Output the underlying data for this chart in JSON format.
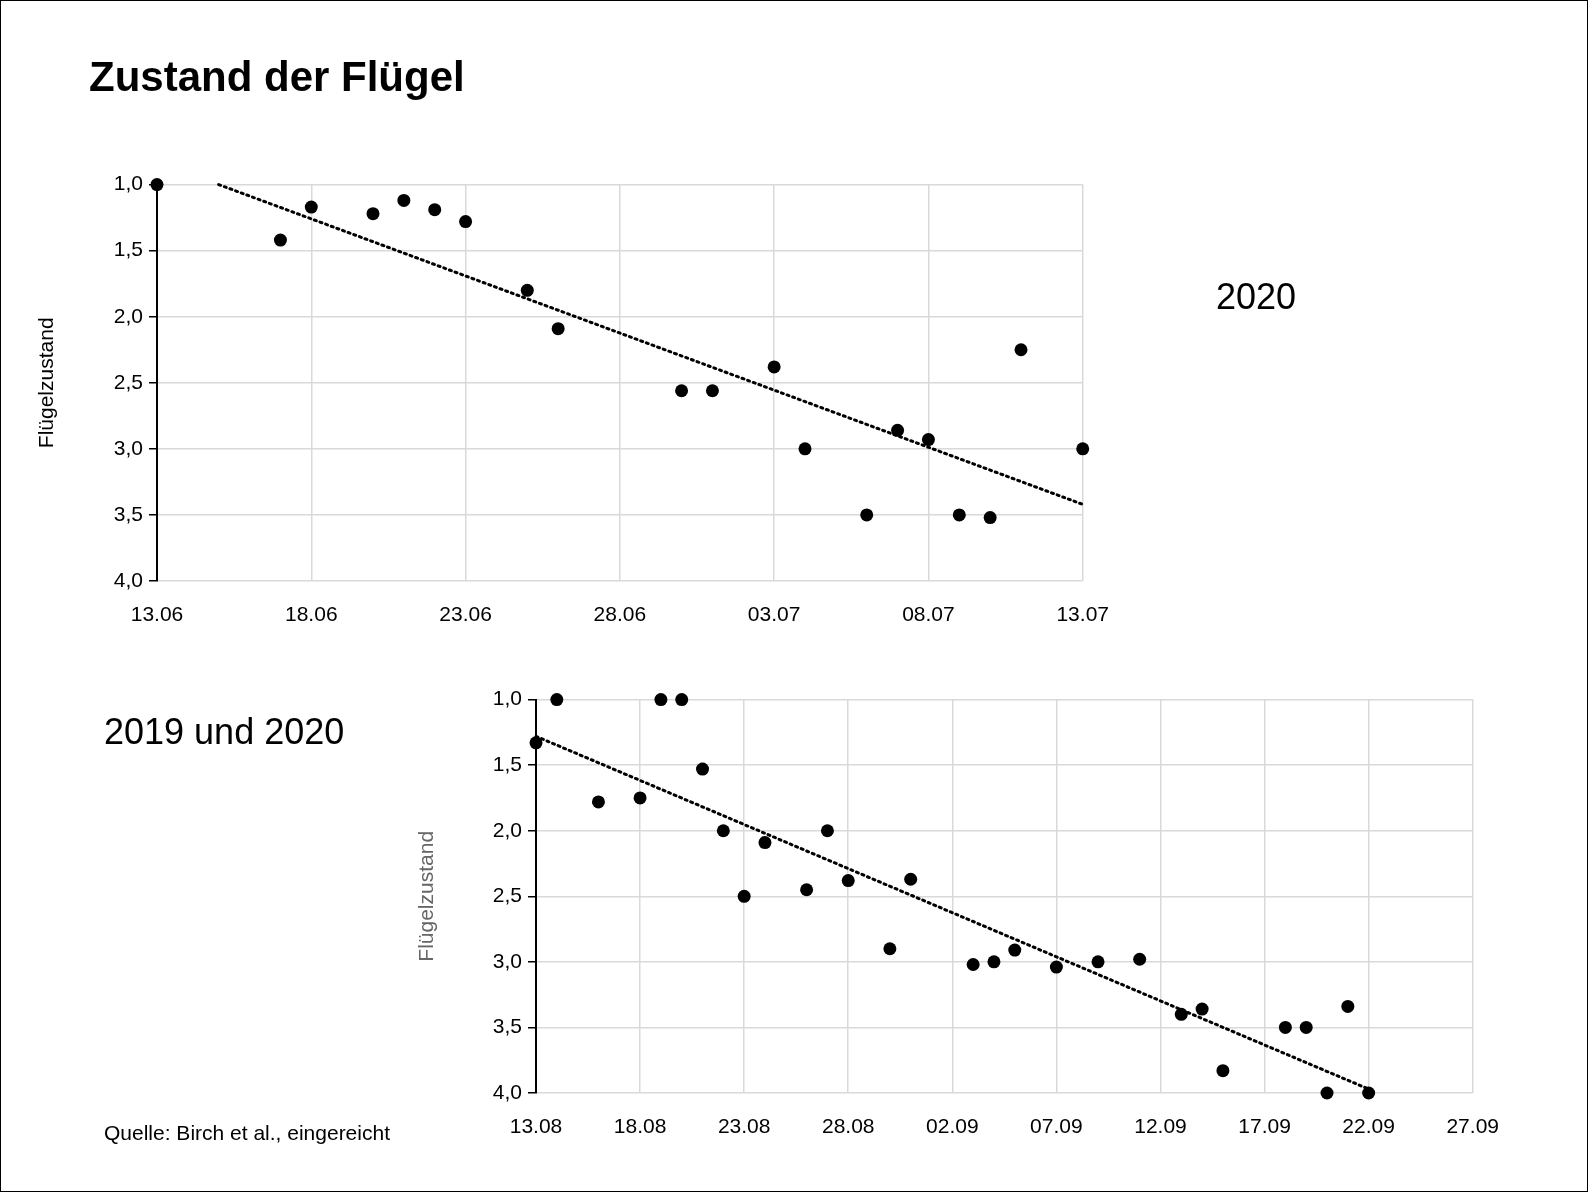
{
  "chart_data": [
    {
      "type": "scatter",
      "title": "Zustand der Flügel",
      "ylabel": "Flügelzustand",
      "annotations": [
        "2020"
      ],
      "series": [
        {
          "type": "scatter",
          "color": "#000000",
          "marker": "circle",
          "x": [
            "--06-13",
            "--06-17",
            "--06-18",
            "--06-20",
            "--06-21",
            "--06-22",
            "--06-23",
            "--06-25",
            "--06-26",
            "--06-30",
            "--07-01",
            "--07-03",
            "--07-04",
            "--07-06",
            "--07-07",
            "--07-08",
            "--07-09",
            "--07-10",
            "--07-11",
            "--07-13"
          ],
          "values": [
            1.0,
            1.42,
            1.17,
            1.22,
            1.12,
            1.19,
            1.28,
            1.8,
            2.09,
            2.56,
            2.56,
            2.38,
            3.0,
            3.5,
            2.86,
            2.93,
            3.5,
            3.52,
            2.25,
            3.0
          ]
        },
        {
          "type": "line",
          "color": "#000000",
          "marker": "none",
          "line_style": "dotted",
          "x": [
            "--06-15",
            "--07-13"
          ],
          "values": [
            1.0,
            3.42
          ]
        }
      ],
      "xlim": [
        "--06-13",
        "--07-13"
      ],
      "xticks": [
        {
          "value": "--06-13",
          "label": "13.06"
        },
        {
          "value": "--06-18",
          "label": "18.06"
        },
        {
          "value": "--06-23",
          "label": "23.06"
        },
        {
          "value": "--06-28",
          "label": "28.06"
        },
        {
          "value": "--07-03",
          "label": "03.07"
        },
        {
          "value": "--07-08",
          "label": "08.07"
        },
        {
          "value": "--07-13",
          "label": "13.07"
        }
      ],
      "ylim": [
        4.0,
        1.0
      ],
      "yticks": [
        {
          "value": 1.0,
          "label": "1,0"
        },
        {
          "value": 1.5,
          "label": "1,5"
        },
        {
          "value": 2.0,
          "label": "2,0"
        },
        {
          "value": 2.5,
          "label": "2,5"
        },
        {
          "value": 3.0,
          "label": "3,0"
        },
        {
          "value": 3.5,
          "label": "3,5"
        },
        {
          "value": 4.0,
          "label": "4,0"
        }
      ],
      "grid": true
    },
    {
      "type": "scatter",
      "ylabel": "Flügelzustand",
      "annotations": [
        "2019 und 2020",
        "Quelle: Birch et al., eingereicht"
      ],
      "series": [
        {
          "type": "scatter",
          "color": "#000000",
          "marker": "circle",
          "x": [
            "--08-13",
            "--08-14",
            "--08-16",
            "--08-18",
            "--08-19",
            "--08-20",
            "--08-21",
            "--08-22",
            "--08-23",
            "--08-24",
            "--08-26",
            "--08-27",
            "--08-28",
            "--08-30",
            "--08-31",
            "--09-03",
            "--09-04",
            "--09-05",
            "--09-07",
            "--09-09",
            "--09-11",
            "--09-13",
            "--09-14",
            "--09-15",
            "--09-18",
            "--09-19",
            "--09-20",
            "--09-21",
            "--09-22"
          ],
          "values": [
            1.33,
            1.0,
            1.78,
            1.75,
            1.0,
            1.0,
            1.53,
            2.0,
            2.5,
            2.09,
            2.45,
            2.0,
            2.38,
            2.9,
            2.37,
            3.02,
            3.0,
            2.91,
            3.04,
            3.0,
            2.98,
            3.4,
            3.36,
            3.83,
            3.5,
            3.5,
            4.0,
            3.34,
            4.0
          ]
        },
        {
          "type": "line",
          "color": "#000000",
          "marker": "none",
          "line_style": "dotted",
          "x": [
            "--08-13",
            "--09-22"
          ],
          "values": [
            1.28,
            3.97
          ]
        }
      ],
      "xlim": [
        "--08-13",
        "--09-27"
      ],
      "xticks": [
        {
          "value": "--08-13",
          "label": "13.08"
        },
        {
          "value": "--08-18",
          "label": "18.08"
        },
        {
          "value": "--08-23",
          "label": "23.08"
        },
        {
          "value": "--08-28",
          "label": "28.08"
        },
        {
          "value": "--09-02",
          "label": "02.09"
        },
        {
          "value": "--09-07",
          "label": "07.09"
        },
        {
          "value": "--09-12",
          "label": "12.09"
        },
        {
          "value": "--09-17",
          "label": "17.09"
        },
        {
          "value": "--09-22",
          "label": "22.09"
        },
        {
          "value": "--09-27",
          "label": "27.09"
        }
      ],
      "ylim": [
        4.0,
        1.0
      ],
      "yticks": [
        {
          "value": 1.0,
          "label": "1,0"
        },
        {
          "value": 1.5,
          "label": "1,5"
        },
        {
          "value": 2.0,
          "label": "2,0"
        },
        {
          "value": 2.5,
          "label": "2,5"
        },
        {
          "value": 3.0,
          "label": "3,0"
        },
        {
          "value": 3.5,
          "label": "3,5"
        },
        {
          "value": 4.0,
          "label": "4,0"
        }
      ],
      "grid": true
    }
  ]
}
